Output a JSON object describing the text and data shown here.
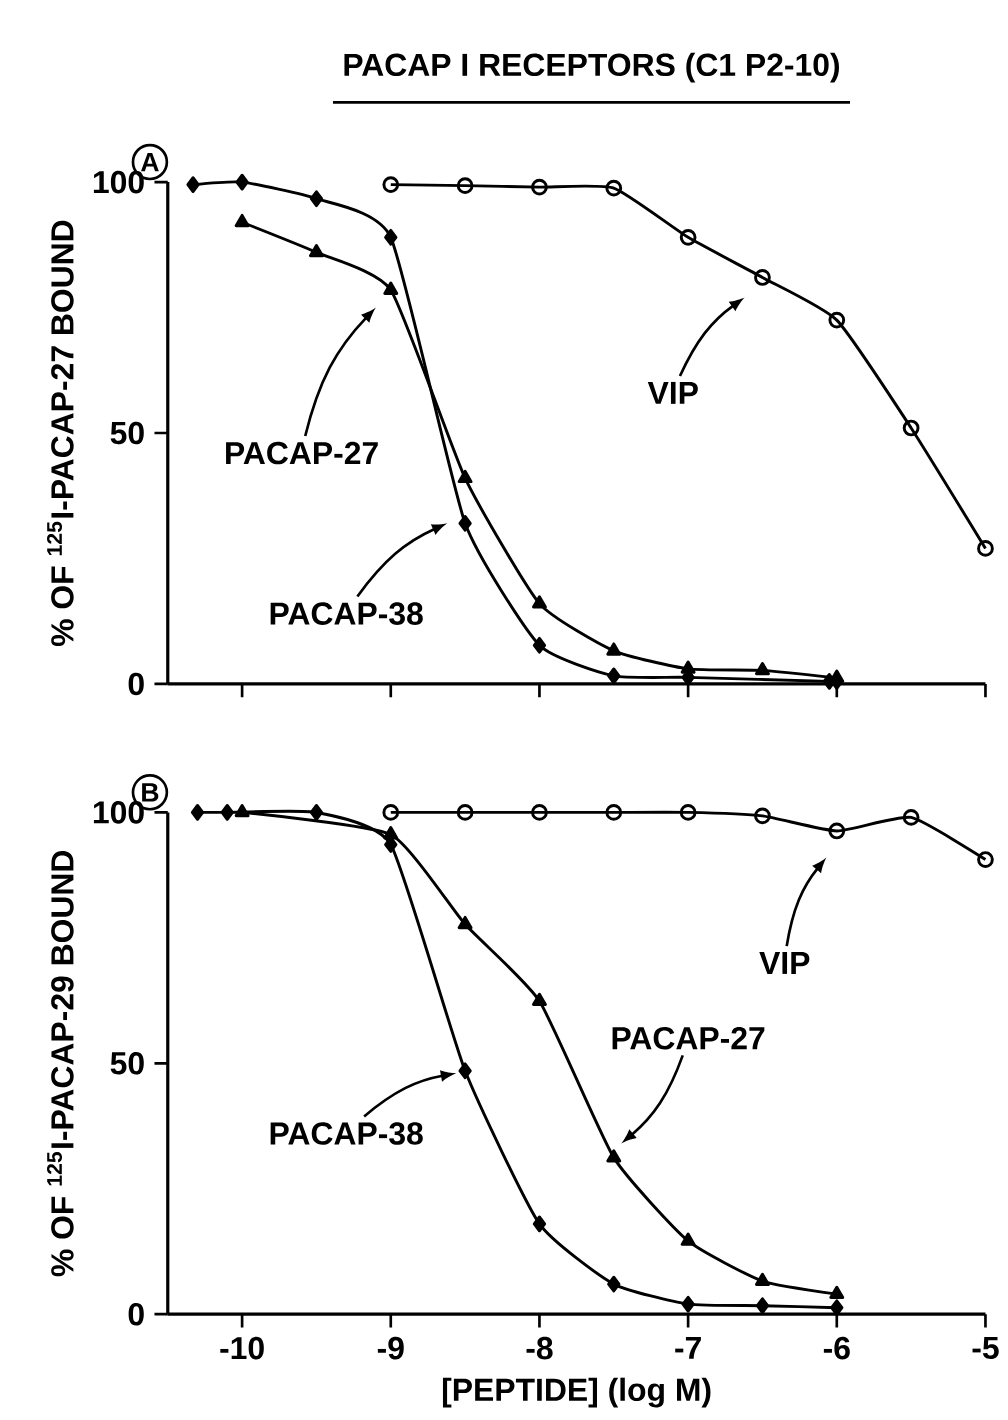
{
  "chart_data": [
    {
      "type": "line",
      "title": "PACAP I RECEPTORS (C1 P2-10)",
      "ylabel": "% OF $^{125}$I-PACAP-27 BOUND",
      "annotations": [
        "A"
      ],
      "xlim": [
        -10.5,
        -5
      ],
      "ylim": [
        0,
        100
      ],
      "xticks": [
        -10,
        -9,
        -8,
        -7,
        -6,
        -5
      ],
      "yticks": [
        0,
        50,
        100
      ],
      "tick_labels": "y",
      "grid": false,
      "legend": "center",
      "line_style": "solid",
      "series": [
        {
          "name": "PACAP-38",
          "color": "#000000",
          "marker": "diamond",
          "x": [
            -10.33,
            -10,
            -9.5,
            -9,
            -8.5,
            -8,
            -7.5,
            -7,
            -6.05,
            -6
          ],
          "values": [
            99.5,
            100,
            96.7,
            89,
            32,
            7.7,
            1.6,
            1.3,
            0.5,
            0.5
          ]
        },
        {
          "name": "PACAP-27",
          "color": "#000000",
          "marker": "triangle",
          "x": [
            -10,
            -9.5,
            -9,
            -8.5,
            -8,
            -7.5,
            -7,
            -6.5,
            -6
          ],
          "values": [
            92,
            86,
            78.5,
            41,
            16,
            6.6,
            3,
            2.7,
            1.2
          ]
        },
        {
          "name": "VIP",
          "color": "#000000",
          "marker": "circle",
          "x": [
            -9,
            -8.5,
            -8,
            -7.5,
            -7,
            -6.5,
            -6,
            -5.5,
            -5
          ],
          "values": [
            99.5,
            99.3,
            99,
            98.8,
            89,
            81,
            72.5,
            51,
            27
          ]
        }
      ]
    },
    {
      "type": "line",
      "xlabel": "[PEPTIDE] (log M)",
      "ylabel": "% OF $^{125}$I-PACAP-29 BOUND",
      "annotations": [
        "B"
      ],
      "xlim": [
        -10.5,
        -5
      ],
      "ylim": [
        0,
        100
      ],
      "xticks": [
        -10,
        -9,
        -8,
        -7,
        -6,
        -5
      ],
      "yticks": [
        0,
        50,
        100
      ],
      "grid": false,
      "legend": "center",
      "line_style": "solid",
      "series": [
        {
          "name": "PACAP-38",
          "color": "#000000",
          "marker": "diamond",
          "x": [
            -10.3,
            -10.1,
            -9.5,
            -9,
            -8.5,
            -8,
            -7.5,
            -7,
            -6.5,
            -6
          ],
          "values": [
            100,
            100,
            100,
            93.6,
            48.5,
            18,
            6,
            2,
            1.7,
            1.3
          ]
        },
        {
          "name": "PACAP-27",
          "color": "#000000",
          "marker": "triangle",
          "x": [
            -10,
            -9,
            -8.5,
            -8,
            -7.5,
            -7,
            -6.5,
            -6
          ],
          "values": [
            100,
            95.6,
            77.7,
            62.4,
            31.2,
            14.6,
            6.6,
            4
          ]
        },
        {
          "name": "VIP",
          "color": "#000000",
          "marker": "circle",
          "x": [
            -9,
            -8.5,
            -8,
            -7.5,
            -7,
            -6.5,
            -6,
            -5.5,
            -5
          ],
          "values": [
            100,
            100,
            100,
            100,
            100,
            99.3,
            96.3,
            99,
            90.6
          ]
        }
      ]
    }
  ]
}
